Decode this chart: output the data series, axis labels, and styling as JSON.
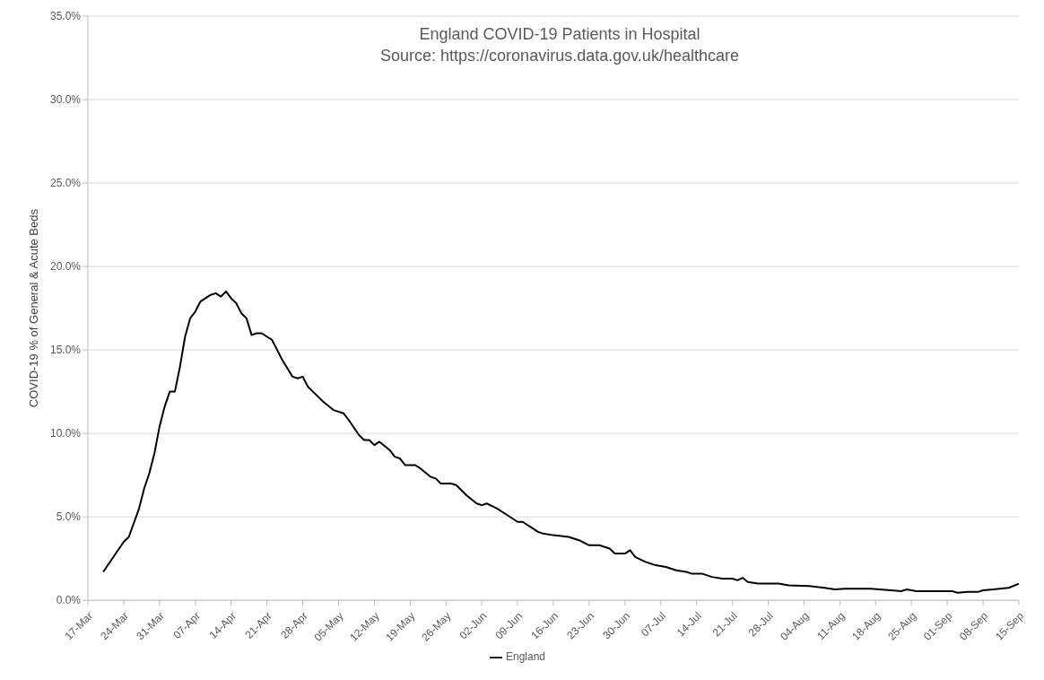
{
  "chart_data": {
    "type": "line",
    "title": "England COVID-19 Patients in Hospital",
    "subtitle": "Source: https://coronavirus.data.gov.uk/healthcare",
    "ylabel": "COVID-19 % of General & Acute Beds",
    "x": [
      "--03-20",
      "--03-22",
      "--03-24",
      "--03-25",
      "--03-27",
      "--03-28",
      "--03-29",
      "--03-30",
      "--03-31",
      "--04-01",
      "--04-02",
      "--04-03",
      "--04-04",
      "--04-05",
      "--04-06",
      "--04-07",
      "--04-08",
      "--04-09",
      "--04-10",
      "--04-11",
      "--04-12",
      "--04-13",
      "--04-14",
      "--04-15",
      "--04-16",
      "--04-17",
      "--04-18",
      "--04-19",
      "--04-20",
      "--04-21",
      "--04-22",
      "--04-23",
      "--04-24",
      "--04-25",
      "--04-26",
      "--04-27",
      "--04-28",
      "--04-29",
      "--04-30",
      "--05-02",
      "--05-04",
      "--05-06",
      "--05-07",
      "--05-09",
      "--05-10",
      "--05-11",
      "--05-12",
      "--05-13",
      "--05-15",
      "--05-16",
      "--05-17",
      "--05-18",
      "--05-20",
      "--05-21",
      "--05-23",
      "--05-24",
      "--05-25",
      "--05-27",
      "--05-28",
      "--05-30",
      "--06-01",
      "--06-02",
      "--06-03",
      "--06-05",
      "--06-07",
      "--06-09",
      "--06-10",
      "--06-12",
      "--06-13",
      "--06-14",
      "--06-16",
      "--06-19",
      "--06-21",
      "--06-23",
      "--06-24",
      "--06-25",
      "--06-27",
      "--06-28",
      "--06-29",
      "--06-30",
      "--07-01",
      "--07-02",
      "--07-04",
      "--07-06",
      "--07-08",
      "--07-10",
      "--07-12",
      "--07-13",
      "--07-15",
      "--07-17",
      "--07-19",
      "--07-21",
      "--07-22",
      "--07-23",
      "--07-24",
      "--07-26",
      "--07-30",
      "--08-01",
      "--08-05",
      "--08-08",
      "--08-10",
      "--08-12",
      "--08-17",
      "--08-21",
      "--08-23",
      "--08-24",
      "--08-26",
      "--09-01",
      "--09-02",
      "--09-03",
      "--09-05",
      "--09-07",
      "--09-08",
      "--09-10",
      "--09-13",
      "--09-15"
    ],
    "series": [
      {
        "name": "England",
        "color": "#000000",
        "values": [
          1.7,
          2.6,
          3.5,
          3.8,
          5.5,
          6.7,
          7.6,
          8.8,
          10.4,
          11.6,
          12.5,
          12.5,
          14.0,
          15.8,
          16.9,
          17.3,
          17.9,
          18.1,
          18.3,
          18.4,
          18.2,
          18.5,
          18.1,
          17.8,
          17.2,
          16.9,
          15.9,
          16.0,
          16.0,
          15.8,
          15.6,
          15.0,
          14.4,
          13.9,
          13.4,
          13.3,
          13.4,
          12.8,
          12.5,
          11.9,
          11.4,
          11.2,
          10.8,
          9.9,
          9.6,
          9.6,
          9.3,
          9.5,
          9.0,
          8.6,
          8.5,
          8.1,
          8.1,
          7.9,
          7.4,
          7.3,
          7.0,
          7.0,
          6.9,
          6.3,
          5.8,
          5.7,
          5.8,
          5.5,
          5.1,
          4.7,
          4.7,
          4.3,
          4.1,
          4.0,
          3.9,
          3.8,
          3.6,
          3.3,
          3.3,
          3.3,
          3.1,
          2.8,
          2.8,
          2.8,
          3.0,
          2.6,
          2.3,
          2.1,
          2.0,
          1.8,
          1.7,
          1.6,
          1.6,
          1.4,
          1.3,
          1.3,
          1.2,
          1.35,
          1.1,
          1.0,
          1.0,
          0.9,
          0.85,
          0.75,
          0.65,
          0.7,
          0.7,
          0.6,
          0.55,
          0.65,
          0.55,
          0.55,
          0.55,
          0.45,
          0.5,
          0.5,
          0.6,
          0.65,
          0.75,
          1.0
        ]
      }
    ],
    "xlim": [
      "--03-17",
      "--09-15"
    ],
    "xticks": [
      {
        "value": "--03-17",
        "label": "17-Mar"
      },
      {
        "value": "--03-24",
        "label": "24-Mar"
      },
      {
        "value": "--03-31",
        "label": "31-Mar"
      },
      {
        "value": "--04-07",
        "label": "07-Apr"
      },
      {
        "value": "--04-14",
        "label": "14-Apr"
      },
      {
        "value": "--04-21",
        "label": "21-Apr"
      },
      {
        "value": "--04-28",
        "label": "28-Apr"
      },
      {
        "value": "--05-05",
        "label": "05-May"
      },
      {
        "value": "--05-12",
        "label": "12-May"
      },
      {
        "value": "--05-19",
        "label": "19-May"
      },
      {
        "value": "--05-26",
        "label": "26-May"
      },
      {
        "value": "--06-02",
        "label": "02-Jun"
      },
      {
        "value": "--06-09",
        "label": "09-Jun"
      },
      {
        "value": "--06-16",
        "label": "16-Jun"
      },
      {
        "value": "--06-23",
        "label": "23-Jun"
      },
      {
        "value": "--06-30",
        "label": "30-Jun"
      },
      {
        "value": "--07-07",
        "label": "07-Jul"
      },
      {
        "value": "--07-14",
        "label": "14-Jul"
      },
      {
        "value": "--07-21",
        "label": "21-Jul"
      },
      {
        "value": "--07-28",
        "label": "28-Jul"
      },
      {
        "value": "--08-04",
        "label": "04-Aug"
      },
      {
        "value": "--08-11",
        "label": "11-Aug"
      },
      {
        "value": "--08-18",
        "label": "18-Aug"
      },
      {
        "value": "--08-25",
        "label": "25-Aug"
      },
      {
        "value": "--09-01",
        "label": "01-Sep"
      },
      {
        "value": "--09-08",
        "label": "08-Sep"
      },
      {
        "value": "--09-15",
        "label": "15-Sep"
      }
    ],
    "ylim": [
      0,
      35
    ],
    "yticks": [
      {
        "value": 0,
        "label": "0.0%"
      },
      {
        "value": 5,
        "label": "5.0%"
      },
      {
        "value": 10,
        "label": "10.0%"
      },
      {
        "value": 15,
        "label": "15.0%"
      },
      {
        "value": 20,
        "label": "20.0%"
      },
      {
        "value": 25,
        "label": "25.0%"
      },
      {
        "value": 30,
        "label": "30.0%"
      },
      {
        "value": 35,
        "label": "35.0%"
      }
    ],
    "grid": "y",
    "legend": "bottom",
    "marker": "none",
    "line_style": "solid"
  }
}
